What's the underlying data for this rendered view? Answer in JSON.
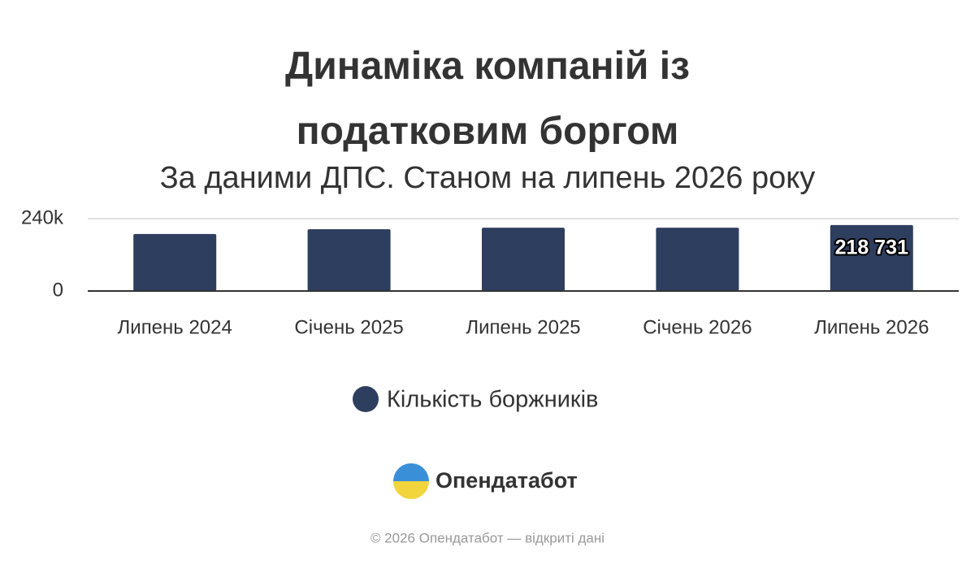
{
  "chart_data": {
    "type": "bar",
    "title": "Динаміка компаній із податковим боргом",
    "subtitle": "За даними ДПС. Станом на липень 2026 року",
    "categories": [
      "Липень 2024",
      "Січень 2025",
      "Липень 2025",
      "Січень 2026",
      "Липень 2026"
    ],
    "series": [
      {
        "name": "Кількість боржників",
        "color": "#2e3e5e",
        "values": [
          189000,
          205000,
          210000,
          210000,
          218731
        ],
        "value_labels": [
          null,
          null,
          null,
          null,
          "218 731"
        ]
      }
    ],
    "ylim": [
      0,
      240000
    ],
    "yticks": [
      0,
      {
        "value": 240000,
        "label": "240k"
      }
    ],
    "grid": true,
    "legend": "bottom"
  },
  "branding": {
    "logo": "Опендатабот",
    "footer": "© 2026 Опендатабот — відкриті дані"
  }
}
